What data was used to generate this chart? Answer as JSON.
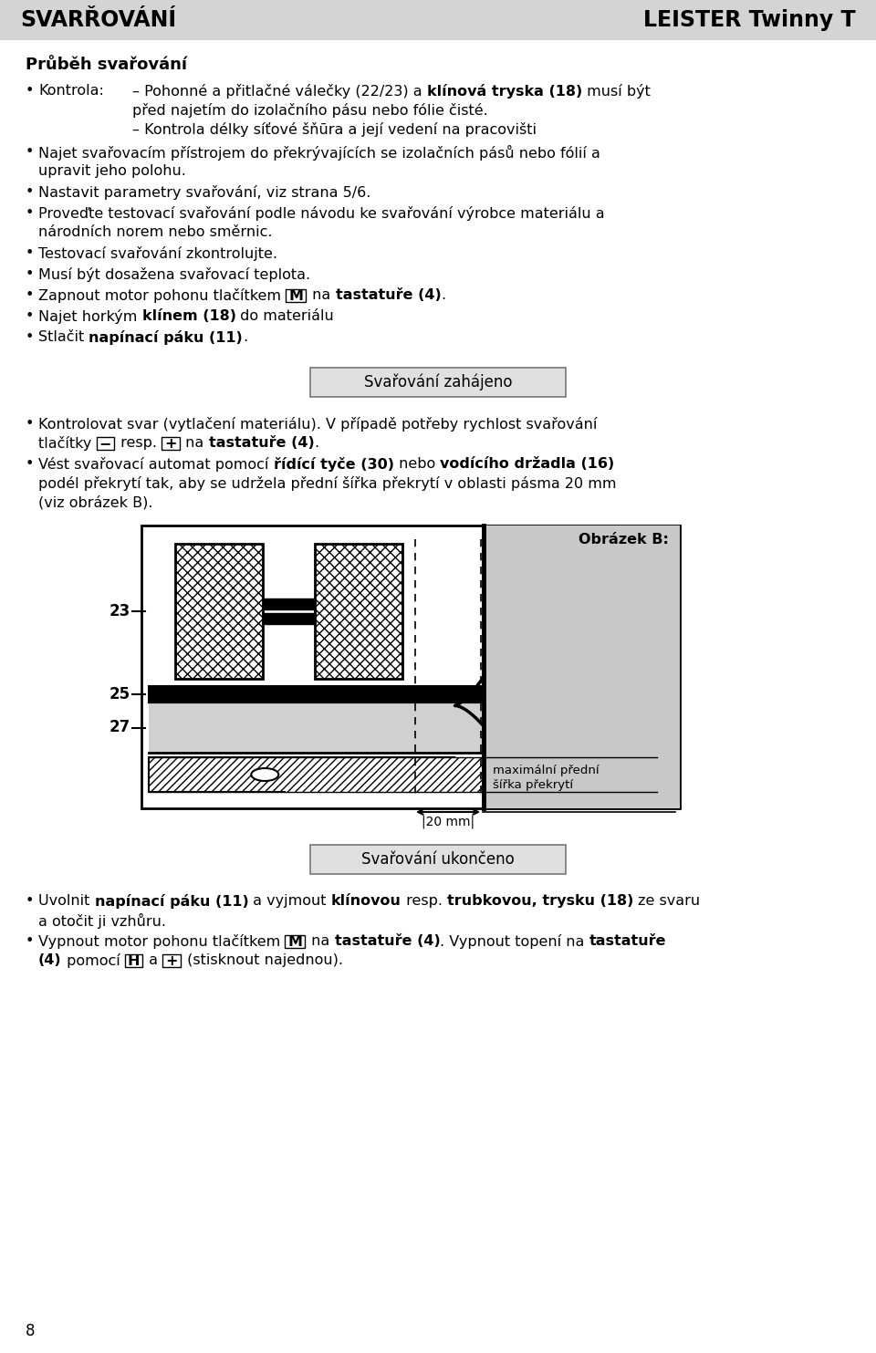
{
  "header_bg": "#d4d4d4",
  "header_left": "SVARŘOVÁNÍ",
  "header_right": "LEISTER Twinny T",
  "bg_color": "#ffffff",
  "page_number": "8",
  "section_title": "Průběh svařování",
  "box1_text": "Svařování zahájeno",
  "box2_text": "Svařování ukončeno",
  "diag_label": "Obrázek B:",
  "diag_23": "23",
  "diag_25": "25",
  "diag_27": "27",
  "diag_20mm": "|20 mm|",
  "diag_max1": "maximální přední",
  "diag_max2": "šířka překrytí"
}
